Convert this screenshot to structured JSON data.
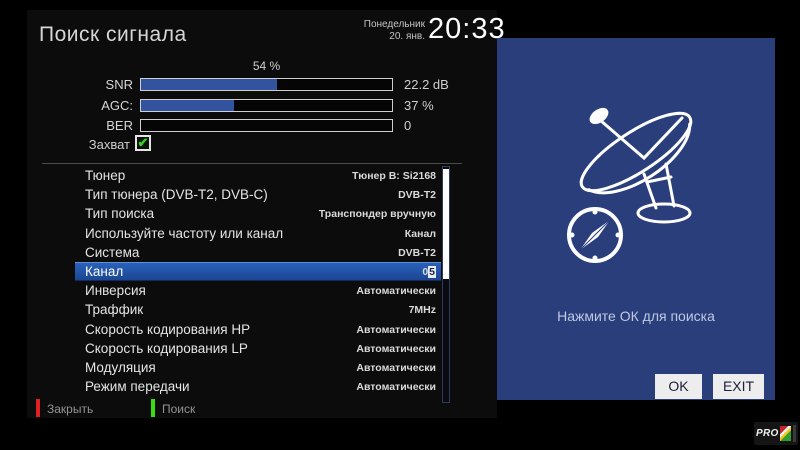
{
  "header": {
    "title": "Поиск сигнала",
    "day": "Понедельник",
    "date": "20. янв.",
    "time": "20:33"
  },
  "signal": {
    "percent_label": "54 %",
    "meters": [
      {
        "label": "SNR",
        "value": "22.2 dB",
        "fill_percent": 54
      },
      {
        "label": "AGC:",
        "value": "37 %",
        "fill_percent": 37
      },
      {
        "label": "BER",
        "value": "0",
        "fill_percent": 0
      }
    ],
    "lock_label": "Захват",
    "lock_checked": true,
    "check_glyph": "✔"
  },
  "settings": {
    "rows": [
      {
        "label": "Тюнер",
        "value": "Тюнер B: Si2168"
      },
      {
        "label": "Тип тюнера (DVB-T2, DVB-C)",
        "value": "DVB-T2"
      },
      {
        "label": "Тип поиска",
        "value": "Транспондер вручную"
      },
      {
        "label": "Используйте частоту или канал",
        "value": "Канал"
      },
      {
        "label": "Система",
        "value": "DVB-T2"
      },
      {
        "label": "Канал",
        "value": "05",
        "value_prefix": "0",
        "cursor_digit": "5",
        "selected": true
      },
      {
        "label": "Инверсия",
        "value": "Автоматически"
      },
      {
        "label": "Траффик",
        "value": "7MHz"
      },
      {
        "label": "Скорость кодирования HP",
        "value": "Автоматически"
      },
      {
        "label": "Скорость кодирования LP",
        "value": "Автоматически"
      },
      {
        "label": "Модуляция",
        "value": "Автоматически"
      },
      {
        "label": "Режим передачи",
        "value": "Автоматически"
      }
    ]
  },
  "footer": {
    "close_label": "Закрыть",
    "search_label": "Поиск"
  },
  "right_panel": {
    "hint": "Нажмите ОК для поиска",
    "ok_label": "OK",
    "exit_label": "EXIT"
  },
  "watermark": {
    "text": "PRO"
  },
  "colors": {
    "bar_fill": "#32549e",
    "panel_blue": "#2a3e7c",
    "selected_row_top": "#2a63bc",
    "selected_row_bottom": "#1b4492",
    "check_green": "#35d41c",
    "key_red": "#e02020",
    "key_green": "#35e010"
  }
}
